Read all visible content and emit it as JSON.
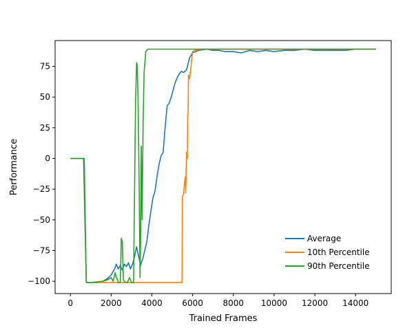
{
  "chart_data": {
    "type": "line",
    "title": "",
    "xlabel": "Trained Frames",
    "ylabel": "Performance",
    "xlim": [
      -750,
      15750
    ],
    "ylim": [
      -110,
      96
    ],
    "xticks": [
      0,
      2000,
      4000,
      6000,
      8000,
      10000,
      12000,
      14000
    ],
    "yticks": [
      -100,
      -75,
      -50,
      -25,
      0,
      25,
      50,
      75
    ],
    "grid": false,
    "legend_position": "lower-right",
    "series": [
      {
        "name": "Average",
        "color": "#1f77b4",
        "points": [
          [
            0,
            0
          ],
          [
            600,
            0
          ],
          [
            680,
            0
          ],
          [
            720,
            -40
          ],
          [
            780,
            -101
          ],
          [
            1000,
            -101
          ],
          [
            1400,
            -101
          ],
          [
            1600,
            -100
          ],
          [
            1800,
            -98
          ],
          [
            2000,
            -95
          ],
          [
            2100,
            -92
          ],
          [
            2200,
            -89
          ],
          [
            2250,
            -86
          ],
          [
            2350,
            -90
          ],
          [
            2450,
            -87
          ],
          [
            2550,
            -91
          ],
          [
            2650,
            -86
          ],
          [
            2750,
            -88
          ],
          [
            2850,
            -85
          ],
          [
            2950,
            -90
          ],
          [
            3050,
            -86
          ],
          [
            3150,
            -80
          ],
          [
            3250,
            -72
          ],
          [
            3350,
            -80
          ],
          [
            3450,
            -87
          ],
          [
            3500,
            -84
          ],
          [
            3550,
            -82
          ],
          [
            3650,
            -75
          ],
          [
            3750,
            -68
          ],
          [
            3850,
            -55
          ],
          [
            3950,
            -43
          ],
          [
            4050,
            -32
          ],
          [
            4150,
            -27
          ],
          [
            4250,
            -15
          ],
          [
            4350,
            -5
          ],
          [
            4450,
            2
          ],
          [
            4550,
            5
          ],
          [
            4650,
            25
          ],
          [
            4750,
            43
          ],
          [
            4850,
            45
          ],
          [
            4950,
            50
          ],
          [
            5050,
            56
          ],
          [
            5150,
            62
          ],
          [
            5250,
            66
          ],
          [
            5350,
            69
          ],
          [
            5450,
            71
          ],
          [
            5550,
            70
          ],
          [
            5700,
            72
          ],
          [
            5850,
            82
          ],
          [
            6000,
            86
          ],
          [
            6300,
            88
          ],
          [
            6700,
            89
          ],
          [
            7000,
            88
          ],
          [
            7300,
            88
          ],
          [
            7600,
            87
          ],
          [
            8000,
            87
          ],
          [
            8400,
            86
          ],
          [
            8800,
            88
          ],
          [
            9200,
            87
          ],
          [
            9600,
            88
          ],
          [
            10000,
            87
          ],
          [
            10500,
            88
          ],
          [
            11000,
            88
          ],
          [
            11500,
            89
          ],
          [
            12000,
            88
          ],
          [
            12500,
            88
          ],
          [
            13000,
            88
          ],
          [
            13500,
            88
          ],
          [
            14000,
            89
          ],
          [
            14500,
            89
          ],
          [
            15000,
            89
          ]
        ]
      },
      {
        "name": "10th Percentile",
        "color": "#ff7f0e",
        "points": [
          [
            0,
            0
          ],
          [
            650,
            0
          ],
          [
            700,
            -40
          ],
          [
            780,
            -101
          ],
          [
            1000,
            -101
          ],
          [
            2000,
            -101
          ],
          [
            3000,
            -101
          ],
          [
            4000,
            -101
          ],
          [
            5000,
            -101
          ],
          [
            5480,
            -101
          ],
          [
            5500,
            -31
          ],
          [
            5560,
            -29
          ],
          [
            5600,
            -20
          ],
          [
            5640,
            -15
          ],
          [
            5660,
            -28
          ],
          [
            5700,
            5
          ],
          [
            5740,
            0
          ],
          [
            5760,
            35
          ],
          [
            5780,
            38
          ],
          [
            5800,
            68
          ],
          [
            5850,
            65
          ],
          [
            5900,
            72
          ],
          [
            6000,
            87
          ],
          [
            6100,
            88
          ],
          [
            6500,
            89
          ],
          [
            7000,
            89
          ],
          [
            8000,
            89
          ],
          [
            9000,
            89
          ],
          [
            10000,
            89
          ],
          [
            11000,
            89
          ],
          [
            12000,
            89
          ],
          [
            13000,
            89
          ],
          [
            14000,
            89
          ],
          [
            15000,
            89
          ]
        ]
      },
      {
        "name": "90th Percentile",
        "color": "#2ca02c",
        "points": [
          [
            0,
            0
          ],
          [
            650,
            0
          ],
          [
            700,
            -40
          ],
          [
            780,
            -101
          ],
          [
            1000,
            -101
          ],
          [
            1600,
            -100
          ],
          [
            1800,
            -99
          ],
          [
            2000,
            -97
          ],
          [
            2100,
            -100
          ],
          [
            2200,
            -93
          ],
          [
            2250,
            -97
          ],
          [
            2300,
            -98
          ],
          [
            2350,
            -101
          ],
          [
            2450,
            -101
          ],
          [
            2500,
            -65
          ],
          [
            2550,
            -68
          ],
          [
            2600,
            -99
          ],
          [
            2700,
            -101
          ],
          [
            2800,
            -101
          ],
          [
            2900,
            -97
          ],
          [
            3000,
            -101
          ],
          [
            3100,
            -101
          ],
          [
            3150,
            -30
          ],
          [
            3200,
            45
          ],
          [
            3250,
            78
          ],
          [
            3280,
            76
          ],
          [
            3320,
            50
          ],
          [
            3380,
            -25
          ],
          [
            3420,
            -97
          ],
          [
            3450,
            -60
          ],
          [
            3480,
            10
          ],
          [
            3520,
            -50
          ],
          [
            3570,
            30
          ],
          [
            3620,
            70
          ],
          [
            3700,
            87
          ],
          [
            3800,
            89
          ],
          [
            4000,
            89
          ],
          [
            5000,
            89
          ],
          [
            6000,
            89
          ],
          [
            7000,
            89
          ],
          [
            8000,
            89
          ],
          [
            9000,
            89
          ],
          [
            10000,
            89
          ],
          [
            11000,
            89
          ],
          [
            12000,
            89
          ],
          [
            13000,
            89
          ],
          [
            14000,
            89
          ],
          [
            15000,
            89
          ]
        ]
      }
    ]
  }
}
